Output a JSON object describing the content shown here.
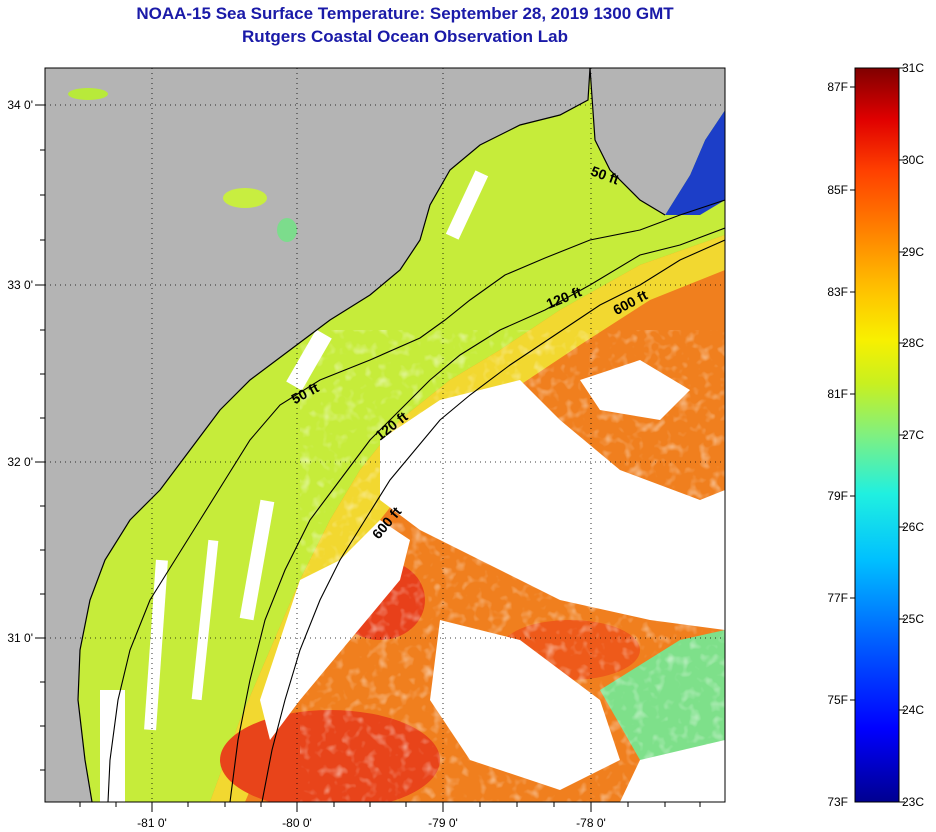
{
  "title_line1": "NOAA-15 Sea Surface Temperature:  September 28, 2019 1300 GMT",
  "title_line2": "Rutgers Coastal Ocean Observation Lab",
  "map": {
    "lat_labels": [
      "34 0'",
      "33 0'",
      "32 0'",
      "31 0'"
    ],
    "lon_labels": [
      "-81 0'",
      "-80 0'",
      "-79 0'",
      "-78 0'"
    ],
    "contours": [
      {
        "depth": "50 ft",
        "labels": [
          "50 ft",
          "50 ft"
        ]
      },
      {
        "depth": "120 ft",
        "labels": [
          "120 ft",
          "120 ft"
        ]
      },
      {
        "depth": "600 ft",
        "labels": [
          "600 ft",
          "600 ft"
        ]
      }
    ],
    "colors": {
      "land": "#b4b4b4",
      "cloud": "#ffffff",
      "grid": "#000000"
    }
  },
  "colorbar": {
    "celsius_labels": [
      "31C",
      "30C",
      "29C",
      "28C",
      "27C",
      "26C",
      "25C",
      "24C",
      "23C"
    ],
    "fahrenheit_labels": [
      "87F",
      "85F",
      "83F",
      "81F",
      "79F",
      "77F",
      "75F",
      "73F"
    ],
    "colors": [
      "#000090",
      "#0000ff",
      "#0060ff",
      "#00c0ff",
      "#20f0e0",
      "#80f080",
      "#c8f020",
      "#f8f000",
      "#ffc000",
      "#ff8000",
      "#ff4000",
      "#e00000",
      "#800000"
    ]
  }
}
